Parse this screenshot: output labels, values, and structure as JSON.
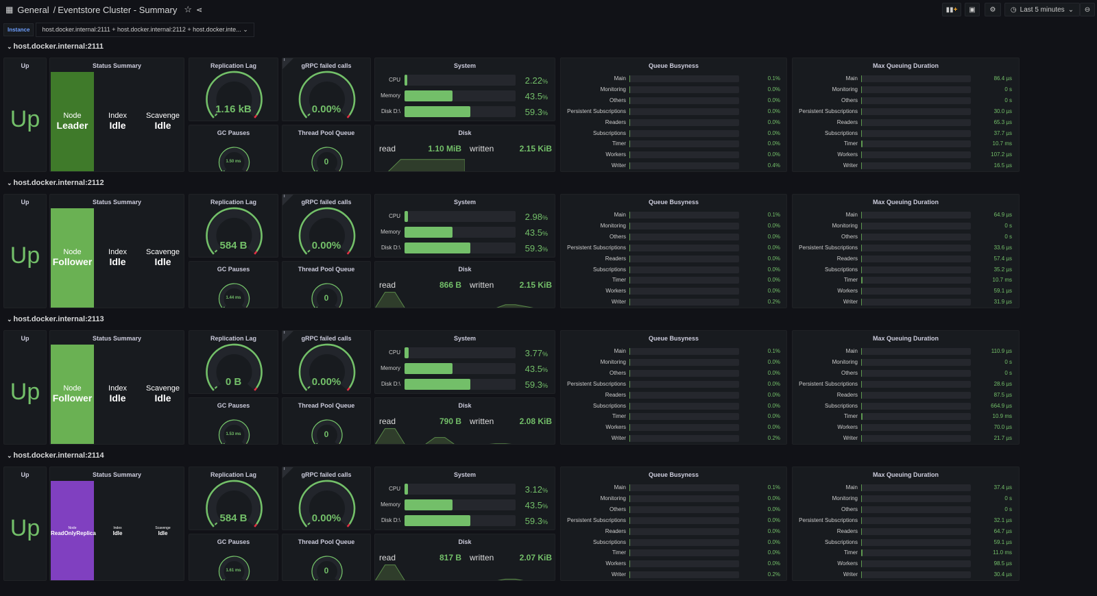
{
  "header": {
    "breadcrumb_root": "General",
    "breadcrumb_sep": "/",
    "title": "Eventstore Cluster - Summary",
    "time_range": "Last 5 minutes"
  },
  "variables": {
    "instance_label": "Instance",
    "instance_value": "host.docker.internal:2111 + host.docker.internal:2112 + host.docker.inte..."
  },
  "colors": {
    "accent": "#73bf69",
    "leader": "#3f7a2a",
    "follower": "#6ab153",
    "replica": "#8040c0",
    "danger": "#e02f44"
  },
  "panel_titles": {
    "up": "Up",
    "status": "Status Summary",
    "replication": "Replication Lag",
    "grpc": "gRPC failed calls",
    "gc": "GC Pauses",
    "threadpool": "Thread Pool Queue",
    "system": "System",
    "disk": "Disk",
    "queue": "Queue Busyness",
    "maxqueue": "Max Queuing Duration"
  },
  "labels": {
    "node": "Node",
    "index": "Index",
    "scavenge": "Scavenge",
    "cpu": "CPU",
    "memory": "Memory",
    "disk_d": "Disk D:\\",
    "read": "read",
    "written": "written",
    "pct": "%"
  },
  "queue_names": [
    "Main",
    "Monitoring",
    "Others",
    "Persistent Subscriptions",
    "Readers",
    "Subscriptions",
    "Timer",
    "Workers",
    "Writer"
  ],
  "sections": [
    {
      "name": "host.docker.internal:2111",
      "up": "Up",
      "node_role": "Leader",
      "role_color": "#3f7a2a",
      "index": "Idle",
      "scavenge": "Idle",
      "replication_lag": "1.16 kB",
      "grpc_failed": "0.00%",
      "gc_pauses": "1.50 ms",
      "thread_pool_queue": "0",
      "cpu": "2.22",
      "memory": "43.5",
      "disk": "59.3",
      "disk_read": "1.10 MiB",
      "disk_written": "2.15 KiB",
      "read_series": [
        0,
        0,
        0.7,
        0.7,
        0.7,
        0.7,
        0.7,
        0.7
      ],
      "written_series": [
        0,
        0,
        0,
        0,
        0,
        0,
        0,
        0
      ],
      "queue": [
        "0.1%",
        "0.0%",
        "0.0%",
        "0.0%",
        "0.0%",
        "0.0%",
        "0.0%",
        "0.0%",
        "0.4%"
      ],
      "maxqueue": [
        "86.4 µs",
        "0 s",
        "0 s",
        "30.0 µs",
        "65.3 µs",
        "37.7 µs",
        "10.7 ms",
        "107.2 µs",
        "16.5 µs"
      ],
      "maxqueue_fill": [
        0.003,
        0,
        0,
        0.002,
        0.003,
        0.002,
        0.015,
        0.004,
        0.002
      ]
    },
    {
      "name": "host.docker.internal:2112",
      "up": "Up",
      "node_role": "Follower",
      "role_color": "#6ab153",
      "index": "Idle",
      "scavenge": "Idle",
      "replication_lag": "584 B",
      "grpc_failed": "0.00%",
      "gc_pauses": "1.44 ms",
      "thread_pool_queue": "0",
      "cpu": "2.98",
      "memory": "43.5",
      "disk": "59.3",
      "disk_read": "866 B",
      "disk_written": "2.15 KiB",
      "read_series": [
        0,
        0.9,
        0.9,
        0,
        0,
        0,
        0,
        0,
        0,
        0
      ],
      "written_series": [
        0,
        0,
        0,
        0,
        0.2,
        0.2,
        0.1,
        0,
        0,
        0
      ],
      "queue": [
        "0.1%",
        "0.0%",
        "0.0%",
        "0.0%",
        "0.0%",
        "0.0%",
        "0.0%",
        "0.0%",
        "0.2%"
      ],
      "maxqueue": [
        "64.9 µs",
        "0 s",
        "0 s",
        "33.6 µs",
        "57.4 µs",
        "35.2 µs",
        "10.7 ms",
        "59.1 µs",
        "31.9 µs"
      ],
      "maxqueue_fill": [
        0.003,
        0,
        0,
        0.002,
        0.003,
        0.002,
        0.015,
        0.003,
        0.002
      ]
    },
    {
      "name": "host.docker.internal:2113",
      "up": "Up",
      "node_role": "Follower",
      "role_color": "#6ab153",
      "index": "Idle",
      "scavenge": "Idle",
      "replication_lag": "0 B",
      "grpc_failed": "0.00%",
      "gc_pauses": "1.53 ms",
      "thread_pool_queue": "0",
      "cpu": "3.77",
      "memory": "43.5",
      "disk": "59.3",
      "disk_read": "790 B",
      "disk_written": "2.08 KiB",
      "read_series": [
        0,
        0.9,
        0.9,
        0,
        0,
        0,
        0.4,
        0.4,
        0,
        0
      ],
      "written_series": [
        0,
        0,
        0,
        0.05,
        0.05,
        0,
        0,
        0,
        0,
        0
      ],
      "queue": [
        "0.1%",
        "0.0%",
        "0.0%",
        "0.0%",
        "0.0%",
        "0.0%",
        "0.0%",
        "0.0%",
        "0.2%"
      ],
      "maxqueue": [
        "110.9 µs",
        "0 s",
        "0 s",
        "28.6 µs",
        "87.5 µs",
        "664.9 µs",
        "10.9 ms",
        "70.0 µs",
        "21.7 µs"
      ],
      "maxqueue_fill": [
        0.003,
        0,
        0,
        0.002,
        0.003,
        0.004,
        0.015,
        0.003,
        0.002
      ]
    },
    {
      "name": "host.docker.internal:2114",
      "up": "Up",
      "node_role": "ReadOnlyReplica",
      "role_color": "#8040c0",
      "index": "Idle",
      "scavenge": "Idle",
      "replication_lag": "584 B",
      "grpc_failed": "0.00%",
      "gc_pauses": "1.61 ms",
      "thread_pool_queue": "0",
      "cpu": "3.12",
      "memory": "43.5",
      "disk": "59.3",
      "disk_read": "817 B",
      "disk_written": "2.07 KiB",
      "read_series": [
        0,
        0.9,
        0.9,
        0,
        0,
        0,
        0,
        0,
        0,
        0
      ],
      "written_series": [
        0,
        0,
        0,
        0,
        0.1,
        0.1,
        0,
        0,
        0,
        0
      ],
      "queue": [
        "0.1%",
        "0.0%",
        "0.0%",
        "0.0%",
        "0.0%",
        "0.0%",
        "0.0%",
        "0.0%",
        "0.2%"
      ],
      "maxqueue": [
        "37.4 µs",
        "0 s",
        "0 s",
        "32.1 µs",
        "64.7 µs",
        "59.1 µs",
        "11.0 ms",
        "98.5 µs",
        "30.4 µs"
      ],
      "maxqueue_fill": [
        0.003,
        0,
        0,
        0.002,
        0.003,
        0.003,
        0.015,
        0.003,
        0.002
      ]
    }
  ]
}
